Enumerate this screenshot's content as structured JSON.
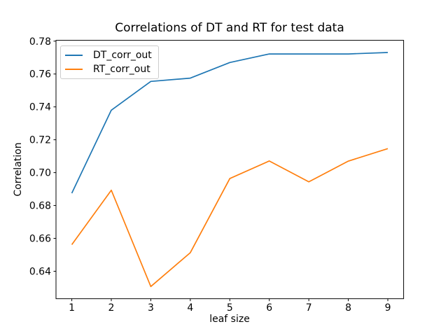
{
  "figure": {
    "title": "Correlations of DT and RT for test data",
    "xlabel": "leaf size",
    "ylabel": "Correlation"
  },
  "legend": {
    "position": "upper left",
    "items": [
      {
        "label": "DT_corr_out",
        "color": "#1f77b4"
      },
      {
        "label": "RT_corr_out",
        "color": "#ff7f0e"
      }
    ]
  },
  "chart_data": {
    "type": "line",
    "title": "Correlations of DT and RT for test data",
    "xlabel": "leaf size",
    "ylabel": "Correlation",
    "x": [
      1,
      2,
      3,
      4,
      5,
      6,
      7,
      8,
      9
    ],
    "series": [
      {
        "name": "DT_corr_out",
        "color": "#1f77b4",
        "values": [
          0.6875,
          0.738,
          0.7555,
          0.7575,
          0.767,
          0.7722,
          0.7722,
          0.7722,
          0.7731
        ]
      },
      {
        "name": "RT_corr_out",
        "color": "#ff7f0e",
        "values": [
          0.6562,
          0.6893,
          0.6307,
          0.6513,
          0.6964,
          0.7071,
          0.6944,
          0.707,
          0.7146
        ]
      }
    ],
    "xlim": [
      0.6,
      9.4
    ],
    "ylim": [
      0.6233,
      0.7805
    ],
    "xticks": [
      1,
      2,
      3,
      4,
      5,
      6,
      7,
      8,
      9
    ],
    "xtick_labels": [
      "1",
      "2",
      "3",
      "4",
      "5",
      "6",
      "7",
      "8",
      "9"
    ],
    "yticks": [
      0.64,
      0.66,
      0.68,
      0.7,
      0.72,
      0.74,
      0.76,
      0.78
    ],
    "ytick_labels": [
      "0.64",
      "0.66",
      "0.68",
      "0.70",
      "0.72",
      "0.74",
      "0.76",
      "0.78"
    ],
    "grid": false,
    "legend_position": "upper left",
    "axis_color": "#000000"
  }
}
